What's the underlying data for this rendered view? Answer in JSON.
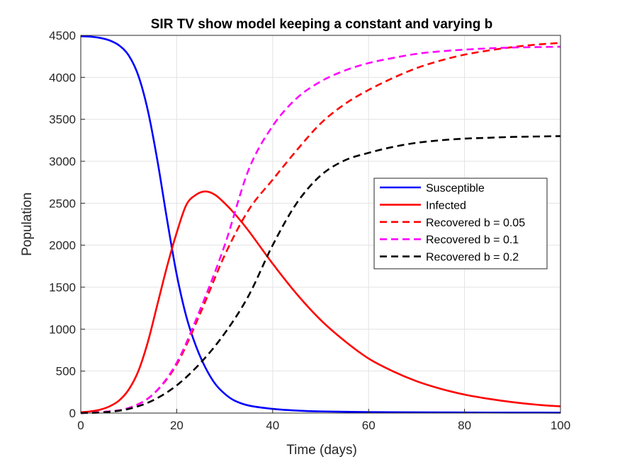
{
  "chart_data": {
    "type": "line",
    "title": "SIR TV show model keeping a constant and varying b",
    "xlabel": "Time (days)",
    "ylabel": "Population",
    "xlim": [
      0,
      100
    ],
    "ylim": [
      0,
      4500
    ],
    "xticks": [
      "0",
      "20",
      "40",
      "60",
      "80",
      "100"
    ],
    "yticks": [
      "0",
      "500",
      "1000",
      "1500",
      "2000",
      "2500",
      "3000",
      "3500",
      "4000",
      "4500"
    ],
    "grid": true,
    "legend_position": "right",
    "series": [
      {
        "name": "Susceptible",
        "color": "#0000FF",
        "dash": "solid",
        "x": [
          0,
          2,
          4,
          6,
          8,
          10,
          12,
          14,
          16,
          18,
          20,
          22,
          24,
          26,
          28,
          30,
          32,
          35,
          40,
          45,
          50,
          60,
          70,
          80,
          90,
          100
        ],
        "y": [
          4490,
          4485,
          4470,
          4440,
          4380,
          4260,
          4020,
          3600,
          3000,
          2300,
          1650,
          1150,
          800,
          540,
          350,
          230,
          150,
          90,
          50,
          30,
          20,
          12,
          9,
          7,
          6,
          5
        ]
      },
      {
        "name": "Infected",
        "color": "#FF0000",
        "dash": "solid",
        "x": [
          0,
          2,
          4,
          6,
          8,
          10,
          12,
          14,
          16,
          18,
          20,
          22,
          24,
          26,
          28,
          30,
          32,
          35,
          40,
          45,
          50,
          55,
          60,
          65,
          70,
          75,
          80,
          85,
          90,
          95,
          100
        ],
        "y": [
          10,
          20,
          40,
          80,
          150,
          280,
          500,
          850,
          1300,
          1750,
          2150,
          2480,
          2600,
          2640,
          2600,
          2500,
          2380,
          2170,
          1780,
          1420,
          1110,
          860,
          650,
          500,
          380,
          290,
          220,
          170,
          130,
          100,
          80
        ]
      },
      {
        "name": "Recovered b = 0.05",
        "color": "#FF0000",
        "dash": "dashed",
        "x": [
          0,
          5,
          10,
          15,
          20,
          25,
          30,
          35,
          40,
          45,
          50,
          55,
          60,
          65,
          70,
          75,
          80,
          85,
          90,
          95,
          100
        ],
        "y": [
          0,
          15,
          60,
          220,
          580,
          1200,
          1880,
          2420,
          2780,
          3130,
          3450,
          3680,
          3850,
          3990,
          4110,
          4200,
          4270,
          4320,
          4360,
          4390,
          4410
        ]
      },
      {
        "name": "Recovered b = 0.1",
        "color": "#FF00FF",
        "dash": "dashed",
        "x": [
          0,
          5,
          10,
          15,
          20,
          25,
          30,
          35,
          40,
          45,
          50,
          55,
          60,
          65,
          70,
          75,
          80,
          85,
          90,
          95,
          100
        ],
        "y": [
          0,
          15,
          60,
          220,
          600,
          1250,
          2000,
          2900,
          3420,
          3750,
          3950,
          4080,
          4170,
          4230,
          4280,
          4310,
          4330,
          4345,
          4355,
          4360,
          4365
        ]
      },
      {
        "name": "Recovered b = 0.2",
        "color": "#000000",
        "dash": "dashed",
        "x": [
          0,
          5,
          10,
          15,
          20,
          25,
          30,
          35,
          40,
          45,
          50,
          55,
          60,
          65,
          70,
          75,
          80,
          85,
          90,
          95,
          100
        ],
        "y": [
          0,
          10,
          50,
          150,
          330,
          600,
          950,
          1400,
          2000,
          2500,
          2830,
          3010,
          3100,
          3170,
          3220,
          3250,
          3270,
          3280,
          3290,
          3295,
          3300
        ]
      }
    ]
  }
}
